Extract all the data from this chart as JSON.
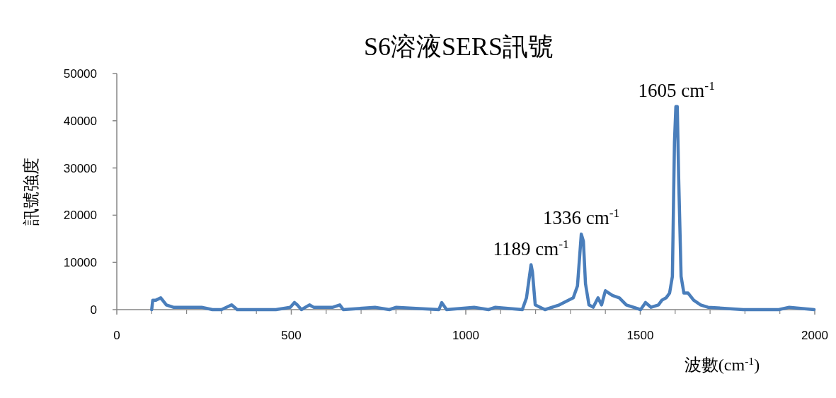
{
  "chart_data": {
    "type": "line",
    "title": "S6溶液SERS訊號",
    "xlabel": "波數(cm$^{-1}$)",
    "ylabel": "訊號強度",
    "xlim": [
      0,
      2000
    ],
    "ylim": [
      0,
      50000
    ],
    "xticks": [
      0,
      500,
      1000,
      1500,
      2000
    ],
    "yticks": [
      0,
      10000,
      20000,
      30000,
      40000,
      50000
    ],
    "grid": false,
    "marker": "none",
    "line_style": "solid",
    "series": [
      {
        "color": "#4a7ebb",
        "x": [
          100,
          103,
          112,
          126,
          142,
          162,
          213,
          243,
          274,
          300,
          329,
          345,
          456,
          497,
          509,
          517,
          529,
          552,
          564,
          619,
          639,
          649,
          740,
          781,
          801,
          923,
          931,
          945,
          1024,
          1065,
          1085,
          1162,
          1174,
          1187,
          1191,
          1199,
          1227,
          1268,
          1308,
          1320,
          1331,
          1337,
          1343,
          1353,
          1365,
          1379,
          1389,
          1400,
          1420,
          1440,
          1460,
          1501,
          1515,
          1531,
          1552,
          1562,
          1574,
          1584,
          1592,
          1598,
          1602,
          1606,
          1610,
          1617,
          1625,
          1637,
          1653,
          1673,
          1694,
          1795,
          1897,
          1927,
          1998
        ],
        "values": [
          0,
          2000,
          2000,
          2500,
          1000,
          500,
          500,
          500,
          0,
          0,
          1000,
          0,
          0,
          500,
          1500,
          1000,
          0,
          1000,
          500,
          500,
          1000,
          0,
          500,
          0,
          500,
          0,
          1500,
          0,
          500,
          0,
          500,
          0,
          2500,
          9500,
          8000,
          1000,
          0,
          1000,
          2500,
          5000,
          16000,
          14500,
          5500,
          1000,
          500,
          2500,
          1000,
          4000,
          3000,
          2500,
          1000,
          0,
          1500,
          500,
          1000,
          2000,
          2500,
          3500,
          7000,
          35500,
          43000,
          43000,
          28000,
          7000,
          3500,
          3500,
          2000,
          1000,
          500,
          0,
          0,
          500,
          0
        ]
      }
    ],
    "annotations": [
      {
        "text": "1189 cm$^{-1}$",
        "x": 1187,
        "y": 9500
      },
      {
        "text": "1336 cm$^{-1}$",
        "x": 1331,
        "y": 16000
      },
      {
        "text": "1605 cm$^{-1}$",
        "x": 1604,
        "y": 43000
      }
    ]
  }
}
